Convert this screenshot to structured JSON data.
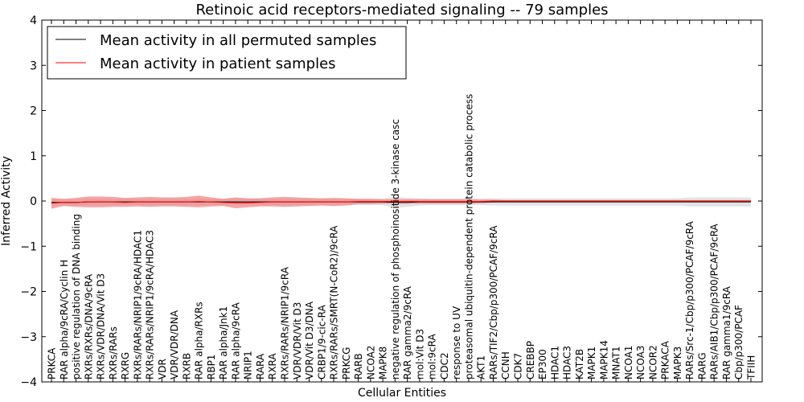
{
  "chart_data": {
    "type": "line",
    "title": "Retinoic acid receptors-mediated signaling -- 79 samples",
    "xlabel": "Cellular Entities",
    "ylabel": "Inferred Activity",
    "ylim": [
      -4,
      4
    ],
    "yticks": [
      -4,
      -3,
      -2,
      -1,
      0,
      1,
      2,
      3,
      4
    ],
    "ytick_labels": [
      "−4",
      "−3",
      "−2",
      "−1",
      "0",
      "1",
      "2",
      "3",
      "4"
    ],
    "grid": false,
    "legend_position": "top-left",
    "categories": [
      "PRKCA",
      "RAR alpha/9cRA/Cyclin H",
      "positive regulation of DNA binding",
      "RXRs/RXRs/DNA/9cRA",
      "RXRs/VDR/DNA/Vit D3",
      "RXRs/RARs",
      "RXRG",
      "RXRs/RARs/NRIP1/9cRA/HDAC1",
      "RXRs/RARs/NRIP1/9cRA/HDAC3",
      "VDR",
      "VDR/VDR/DNA",
      "RXRB",
      "RAR alpha/RXRs",
      "RBP1",
      "RAR alpha/Jnk1",
      "RAR alpha/9cRA",
      "NRIP1",
      "RARA",
      "RXRA",
      "RXRs/RARs/NRIP1/9cRA",
      "VDR/VDR/Vit D3",
      "VDR/Vit D3/DNA",
      "CRBP1/9-cic-RA",
      "RXRs/RARs/SMRT(N-CoR2)/9cRA",
      "PRKCG",
      "RARB",
      "NCOA2",
      "MAPK8",
      "negative regulation of phosphoinositide 3-kinase casc",
      "RAR gamma2/9cRA",
      "mol:Vit D3",
      "mol:9cRA",
      "CDC2",
      "response to UV",
      "proteasomal ubiquitin-dependent protein catabolic process",
      "AKT1",
      "RARs/TIF2/Cbp/p300/PCAF/9cRA",
      "CCNH",
      "CDK7",
      "CREBBP",
      "EP300",
      "HDAC1",
      "HDAC3",
      "KAT2B",
      "MAPK1",
      "MAPK14",
      "MNAT1",
      "NCOA1",
      "NCOA3",
      "NCOR2",
      "PRKACA",
      "MAPK3",
      "RARs/Src-1/Cbp/p300/PCAF/9cRA",
      "RARG",
      "RARs/AIB1/Cbp/p300/PCAF/9cRA",
      "RAR gamma1/9cRA",
      "Cbp/p300/PCAF",
      "TFIIH"
    ],
    "series": [
      {
        "name": "Mean activity in all permuted samples",
        "color": "#000000",
        "band_color": "#cccccc",
        "values": [
          -0.03,
          -0.03,
          -0.03,
          -0.02,
          -0.02,
          -0.02,
          -0.02,
          -0.02,
          -0.02,
          -0.02,
          -0.02,
          -0.02,
          -0.02,
          -0.02,
          -0.02,
          -0.02,
          -0.02,
          -0.02,
          -0.02,
          -0.02,
          -0.02,
          -0.02,
          -0.02,
          -0.02,
          -0.02,
          -0.02,
          -0.02,
          -0.02,
          -0.03,
          -0.03,
          -0.02,
          -0.02,
          -0.02,
          -0.02,
          -0.02,
          -0.02,
          -0.02,
          -0.02,
          -0.02,
          -0.02,
          -0.02,
          -0.02,
          -0.02,
          -0.02,
          -0.02,
          -0.02,
          -0.02,
          -0.02,
          -0.02,
          -0.02,
          -0.02,
          -0.02,
          -0.02,
          -0.02,
          -0.02,
          -0.02,
          -0.02,
          -0.02
        ],
        "band_width": [
          0.07,
          0.07,
          0.07,
          0.07,
          0.07,
          0.07,
          0.07,
          0.07,
          0.07,
          0.07,
          0.07,
          0.07,
          0.07,
          0.07,
          0.07,
          0.07,
          0.07,
          0.07,
          0.07,
          0.07,
          0.07,
          0.07,
          0.07,
          0.07,
          0.07,
          0.07,
          0.07,
          0.07,
          0.12,
          0.1,
          0.08,
          0.07,
          0.07,
          0.07,
          0.07,
          0.07,
          0.08,
          0.08,
          0.08,
          0.08,
          0.08,
          0.08,
          0.08,
          0.08,
          0.08,
          0.08,
          0.08,
          0.08,
          0.08,
          0.08,
          0.08,
          0.08,
          0.1,
          0.1,
          0.1,
          0.1,
          0.1,
          0.1
        ]
      },
      {
        "name": "Mean activity in patient samples",
        "color": "#ff0000",
        "band_color": "#f08080",
        "values": [
          -0.05,
          -0.03,
          -0.03,
          -0.02,
          -0.02,
          -0.02,
          -0.03,
          -0.02,
          -0.02,
          -0.02,
          -0.02,
          -0.02,
          -0.01,
          -0.02,
          -0.03,
          -0.04,
          -0.04,
          -0.03,
          -0.02,
          -0.02,
          -0.02,
          -0.02,
          -0.02,
          -0.02,
          -0.02,
          -0.01,
          -0.01,
          -0.01,
          -0.01,
          -0.01,
          -0.01,
          -0.01,
          -0.01,
          -0.01,
          -0.01,
          -0.01,
          0.0,
          0.0,
          0.0,
          0.0,
          0.0,
          0.0,
          0.0,
          0.0,
          0.0,
          0.0,
          0.0,
          0.0,
          0.0,
          0.0,
          0.0,
          0.0,
          0.0,
          0.0,
          0.0,
          0.0,
          0.0,
          0.0
        ],
        "band_width": [
          0.12,
          0.08,
          0.1,
          0.12,
          0.12,
          0.11,
          0.1,
          0.1,
          0.11,
          0.1,
          0.1,
          0.11,
          0.13,
          0.1,
          0.08,
          0.12,
          0.1,
          0.09,
          0.1,
          0.11,
          0.1,
          0.09,
          0.08,
          0.09,
          0.08,
          0.06,
          0.06,
          0.05,
          0.05,
          0.05,
          0.05,
          0.05,
          0.05,
          0.05,
          0.05,
          0.04,
          0.03,
          0.02,
          0.02,
          0.02,
          0.02,
          0.02,
          0.02,
          0.02,
          0.02,
          0.02,
          0.02,
          0.02,
          0.02,
          0.02,
          0.02,
          0.02,
          0.02,
          0.02,
          0.02,
          0.02,
          0.02,
          0.02
        ]
      }
    ]
  }
}
